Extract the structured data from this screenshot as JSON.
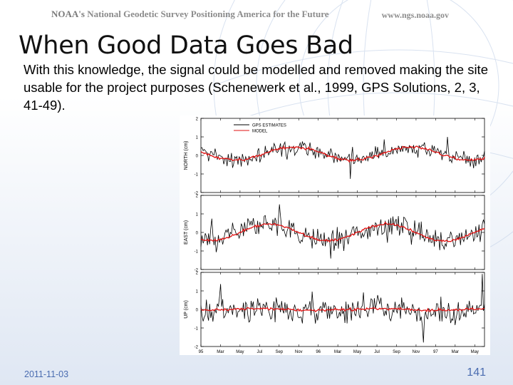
{
  "header": {
    "org_prefix": "NOAA's",
    "org_name": "National Geodetic Survey",
    "tagline": "Positioning America for the Future",
    "url": "www.ngs.noaa.gov"
  },
  "title": "When Good Data Goes Bad",
  "body": "With this knowledge, the signal could be modelled and removed making the site usable for the project purposes (Schenewerk et al., 1999, GPS Solutions, 2, 3, 41-49).",
  "footer": {
    "date": "2011-11-03",
    "page": "141"
  },
  "colors": {
    "estimate": "#000000",
    "model": "#e01010",
    "footer": "#4a6cb0"
  },
  "chart_data": {
    "type": "line",
    "legend": [
      "GPS ESTIMATES",
      "MODEL"
    ],
    "x_ticks": [
      "95",
      "Mar",
      "May",
      "Jul",
      "Sep",
      "Nov",
      "96",
      "Mar",
      "May",
      "Jul",
      "Sep",
      "Nov",
      "97",
      "Mar",
      "May"
    ],
    "x_range_months": [
      0,
      29
    ],
    "panels": [
      {
        "ylabel": "NORTH (cm)",
        "ylim": [
          -2,
          2
        ],
        "yticks": [
          "2",
          "1",
          "0",
          "-1",
          "-2"
        ],
        "model": {
          "offset": 0.1,
          "amplitude": 0.35,
          "phase_month": 9.5
        },
        "noise": 0.3
      },
      {
        "ylabel": "EAST (cm)",
        "ylim": [
          -2,
          2
        ],
        "yticks": [
          "2",
          "1",
          "0",
          "-1",
          "-2"
        ],
        "model": {
          "offset": 0.0,
          "amplitude": 0.45,
          "phase_month": 7.0
        },
        "noise": 0.45
      },
      {
        "ylabel": "UP (cm)",
        "ylim": [
          -2,
          2
        ],
        "yticks": [
          "2",
          "1",
          "0",
          "-1",
          "-2"
        ],
        "model": {
          "offset": 0.0,
          "amplitude": 0.05,
          "phase_month": 6.0
        },
        "noise": 0.5
      }
    ]
  }
}
